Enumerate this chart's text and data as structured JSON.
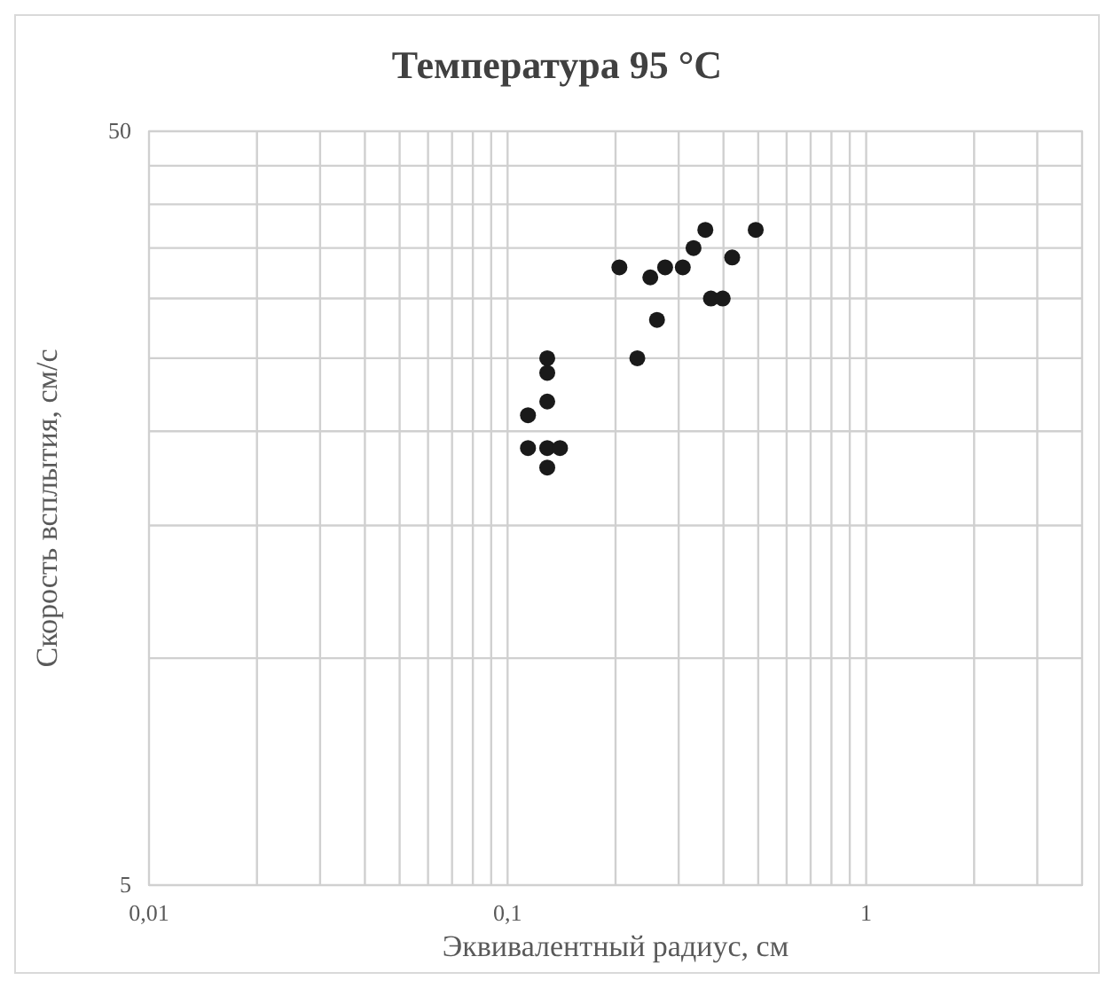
{
  "chart_data": {
    "type": "scatter",
    "title": "Температура 95 °C",
    "xlabel": "Эквивалентный радиус, см",
    "ylabel": "Скорость всплытия, см/с",
    "x": [
      0.114,
      0.114,
      0.129,
      0.14,
      0.129,
      0.129,
      0.129,
      0.129,
      0.205,
      0.23,
      0.25,
      0.261,
      0.275,
      0.308,
      0.33,
      0.356,
      0.369,
      0.398,
      0.423,
      0.492
    ],
    "values": [
      21.0,
      19.0,
      19.0,
      19.0,
      17.9,
      21.9,
      23.9,
      25.0,
      33.0,
      25.0,
      32.0,
      28.1,
      33.0,
      33.0,
      35.0,
      37.0,
      30.0,
      30.0,
      34.0,
      37.0
    ],
    "color": "#1a1a1a",
    "marker": "circle",
    "log": "xy",
    "grid": true,
    "xlim": [
      0.01,
      4
    ],
    "xticks": [
      {
        "value": 0.01,
        "label": "0,01"
      },
      {
        "value": 0.02,
        "label": null
      },
      {
        "value": 0.03,
        "label": null
      },
      {
        "value": 0.04,
        "label": null
      },
      {
        "value": 0.05,
        "label": null
      },
      {
        "value": 0.06,
        "label": null
      },
      {
        "value": 0.07,
        "label": null
      },
      {
        "value": 0.08,
        "label": null
      },
      {
        "value": 0.09,
        "label": null
      },
      {
        "value": 0.1,
        "label": "0,1"
      },
      {
        "value": 0.2,
        "label": null
      },
      {
        "value": 0.3,
        "label": null
      },
      {
        "value": 0.4,
        "label": null
      },
      {
        "value": 0.5,
        "label": null
      },
      {
        "value": 0.6,
        "label": null
      },
      {
        "value": 0.7,
        "label": null
      },
      {
        "value": 0.8,
        "label": null
      },
      {
        "value": 0.9,
        "label": null
      },
      {
        "value": 1,
        "label": "1"
      },
      {
        "value": 2,
        "label": null
      },
      {
        "value": 3,
        "label": null
      },
      {
        "value": 4,
        "label": null
      }
    ],
    "ylim": [
      5,
      50
    ],
    "yticks": [
      5,
      {
        "value": 10,
        "label": null
      },
      {
        "value": 15,
        "label": null
      },
      {
        "value": 20,
        "label": null
      },
      {
        "value": 25,
        "label": null
      },
      {
        "value": 30,
        "label": null
      },
      {
        "value": 35,
        "label": null
      },
      {
        "value": 40,
        "label": null
      },
      {
        "value": 45,
        "label": null
      },
      50
    ]
  }
}
